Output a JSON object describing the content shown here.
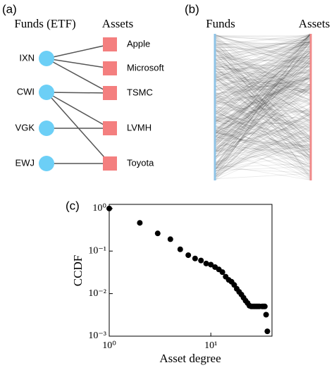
{
  "panel_a": {
    "label": "(a)",
    "funds_title": "Funds (ETF)",
    "assets_title": "Assets",
    "funds": [
      "IXN",
      "CWI",
      "VGK",
      "EWJ"
    ],
    "assets": [
      "Apple",
      "Microsoft",
      "TSMC",
      "LVMH",
      "Toyota"
    ],
    "edges": [
      [
        0,
        0
      ],
      [
        0,
        1
      ],
      [
        0,
        2
      ],
      [
        1,
        2
      ],
      [
        1,
        3
      ],
      [
        1,
        4
      ],
      [
        2,
        3
      ],
      [
        3,
        4
      ]
    ]
  },
  "panel_b": {
    "label": "(b)",
    "left_title": "Funds",
    "right_title": "Assets"
  },
  "chart_data": {
    "type": "scatter",
    "label": "(c)",
    "x_label": "Asset degree",
    "y_label": "CCDF",
    "xscale": "log",
    "yscale": "log",
    "color": "#000000",
    "x": [
      1,
      2,
      3,
      4,
      5,
      6,
      7,
      8,
      9,
      10,
      11,
      12,
      13,
      14,
      15,
      16,
      17,
      18,
      19,
      20,
      21,
      22,
      23,
      24,
      25,
      26,
      27,
      28,
      29,
      30,
      32,
      33,
      34,
      35,
      36
    ],
    "values": [
      1,
      0.46,
      0.26,
      0.19,
      0.11,
      0.08,
      0.067,
      0.06,
      0.051,
      0.048,
      0.042,
      0.037,
      0.032,
      0.025,
      0.021,
      0.019,
      0.016,
      0.013,
      0.011,
      0.0095,
      0.008,
      0.0068,
      0.006,
      0.0052,
      0.005,
      0.005,
      0.005,
      0.005,
      0.005,
      0.005,
      0.005,
      0.005,
      0.005,
      0.0032,
      0.0013
    ],
    "xlim": [
      1,
      40
    ],
    "ylim": [
      0.001,
      1.25
    ],
    "xticks": [
      {
        "value": 1,
        "label": "10⁰"
      },
      {
        "value": 10,
        "label": "10¹"
      }
    ],
    "yticks": [
      {
        "value": 0.001,
        "label": "10⁻³"
      },
      {
        "value": 0.01,
        "label": "10⁻²"
      },
      {
        "value": 0.1,
        "label": "10⁻¹"
      },
      {
        "value": 1,
        "label": "10⁰"
      }
    ]
  }
}
